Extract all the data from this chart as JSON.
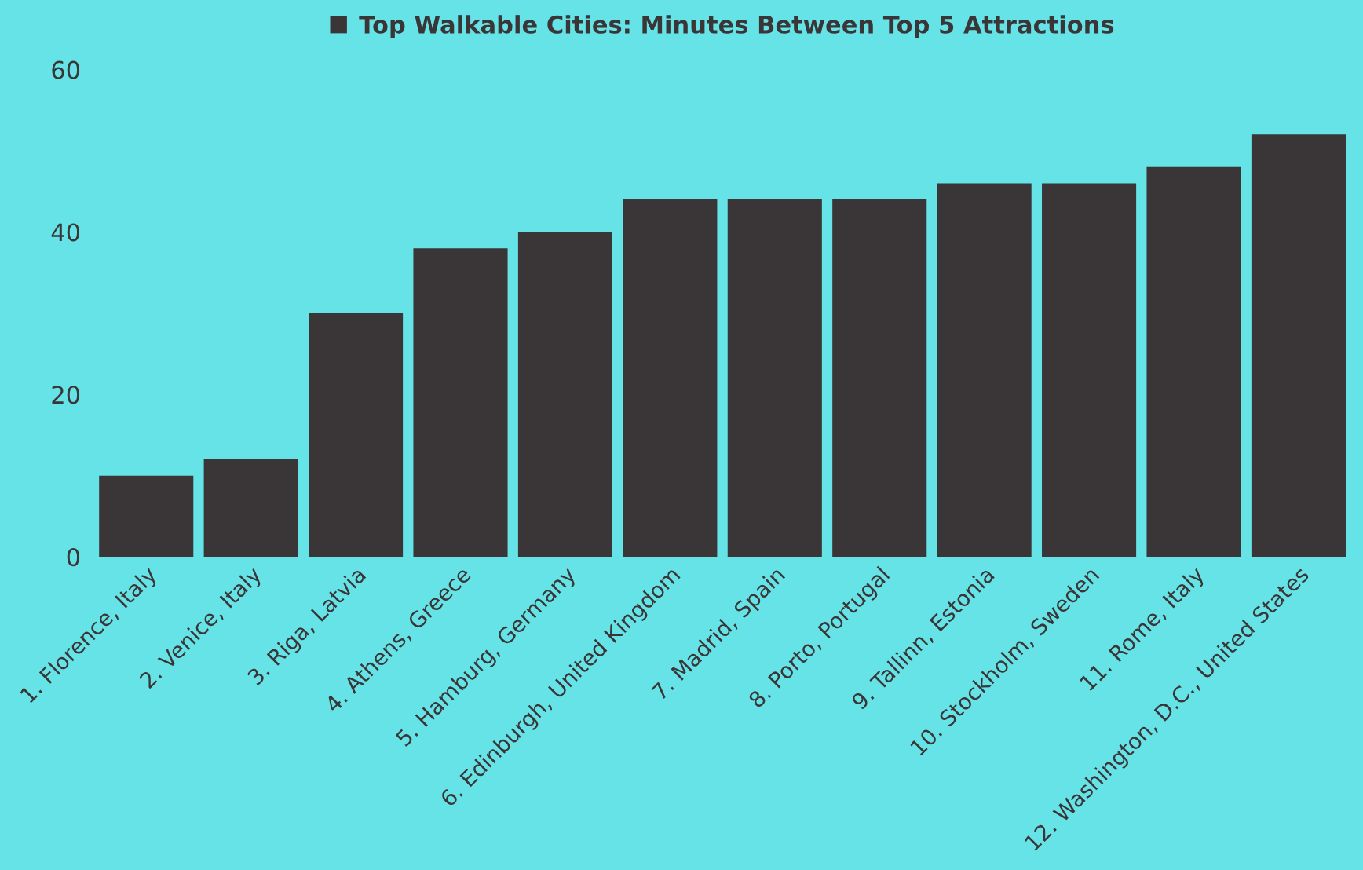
{
  "chart_data": {
    "type": "bar",
    "categories": [
      "1. Florence, Italy",
      "2. Venice, Italy",
      "3. Riga, Latvia",
      "4. Athens, Greece",
      "5. Hamburg, Germany",
      "6. Edinburgh, United Kingdom",
      "7. Madrid, Spain",
      "8. Porto, Portugal",
      "9. Tallinn, Estonia",
      "10. Stockholm, Sweden",
      "11. Rome, Italy",
      "12. Washington, D.C., United States"
    ],
    "series": [
      {
        "name": "Top Walkable Cities: Minutes Between Top 5 Attractions",
        "color": "#3a3536",
        "values": [
          10,
          12,
          30,
          38,
          40,
          44,
          44,
          44,
          46,
          46,
          48,
          52
        ]
      }
    ],
    "ylim": [
      0,
      60
    ],
    "yticks": [
      0,
      20,
      40,
      60
    ],
    "grid": false,
    "legend": "top"
  }
}
